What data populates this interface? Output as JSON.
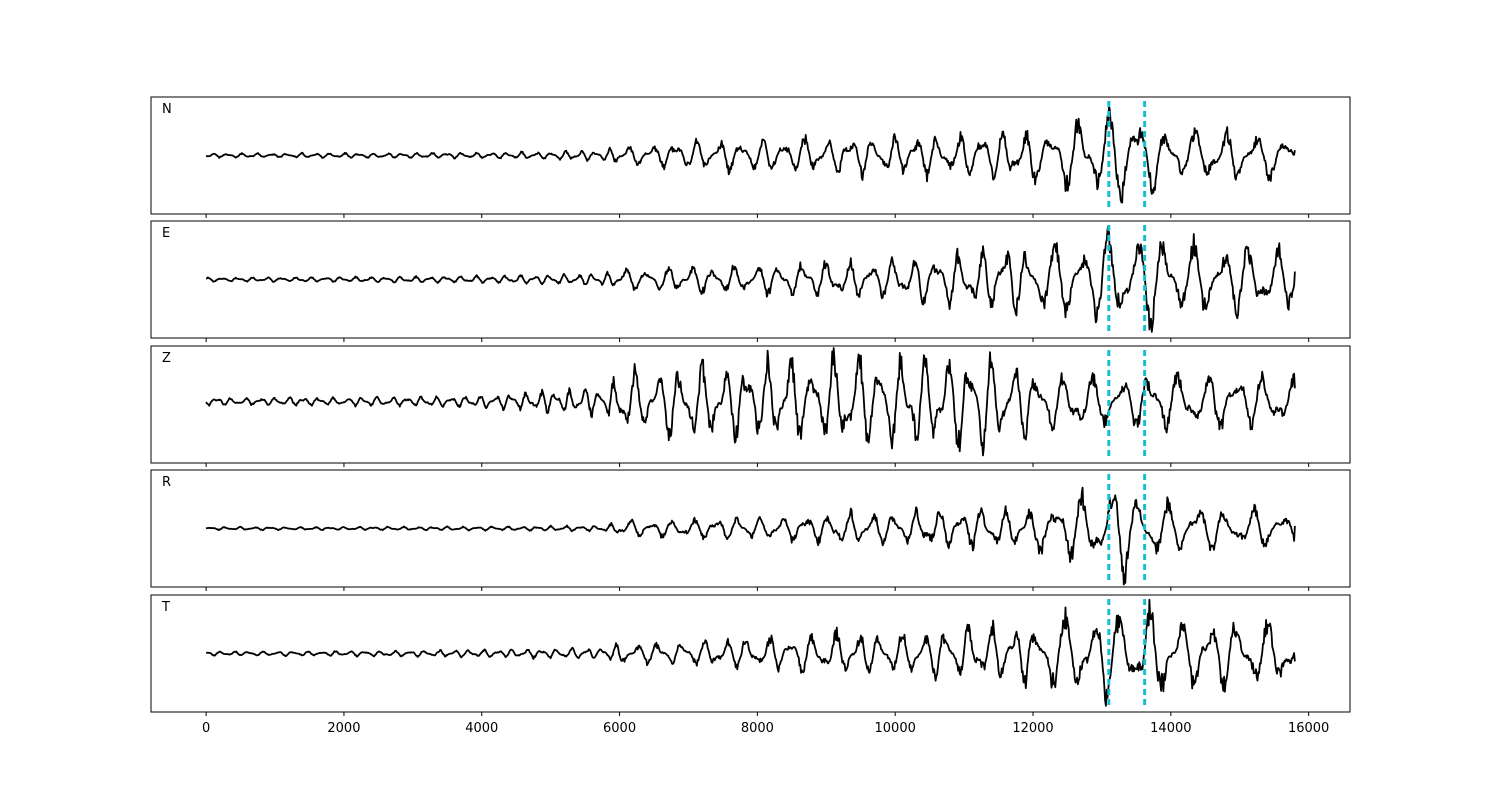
{
  "chart_data": {
    "type": "line",
    "layout": "5 vertically stacked panels sharing one x-axis",
    "xlim": [
      -800,
      16600
    ],
    "grid": false,
    "legend": "none",
    "x_ticks": [
      0,
      2000,
      4000,
      6000,
      8000,
      10000,
      12000,
      14000,
      16000
    ],
    "x_tick_labels": [
      "0",
      "2000",
      "4000",
      "6000",
      "8000",
      "10000",
      "12000",
      "14000",
      "16000"
    ],
    "y_axis": "hidden (no tick labels)",
    "sample_range": [
      0,
      15800
    ],
    "vertical_markers": {
      "x": [
        13100,
        13620
      ],
      "color": "#17becf",
      "style": "dashed"
    },
    "line_color": "#000000",
    "panels": [
      {
        "label": "N",
        "amplitude_envelope": [
          [
            0,
            0.04
          ],
          [
            2000,
            0.05
          ],
          [
            4000,
            0.06
          ],
          [
            5800,
            0.1
          ],
          [
            6000,
            0.2
          ],
          [
            8000,
            0.35
          ],
          [
            10000,
            0.4
          ],
          [
            12000,
            0.5
          ],
          [
            13100,
            0.85
          ],
          [
            13300,
            1.0
          ],
          [
            14000,
            0.55
          ],
          [
            15800,
            0.45
          ]
        ],
        "end_value": 0.1
      },
      {
        "label": "E",
        "amplitude_envelope": [
          [
            0,
            0.04
          ],
          [
            2000,
            0.05
          ],
          [
            4000,
            0.07
          ],
          [
            5800,
            0.12
          ],
          [
            6000,
            0.2
          ],
          [
            8000,
            0.3
          ],
          [
            10000,
            0.4
          ],
          [
            12000,
            0.7
          ],
          [
            13100,
            0.9
          ],
          [
            13300,
            1.0
          ],
          [
            14000,
            0.8
          ],
          [
            15800,
            0.6
          ]
        ],
        "end_value": 0.15
      },
      {
        "label": "Z",
        "amplitude_envelope": [
          [
            0,
            0.08
          ],
          [
            2000,
            0.08
          ],
          [
            4000,
            0.12
          ],
          [
            5800,
            0.3
          ],
          [
            6000,
            0.6
          ],
          [
            8000,
            0.8
          ],
          [
            9000,
            0.9
          ],
          [
            11300,
            1.0
          ],
          [
            12000,
            0.65
          ],
          [
            13100,
            0.5
          ],
          [
            14000,
            0.6
          ],
          [
            15800,
            0.5
          ]
        ],
        "end_value": 0.25
      },
      {
        "label": "R",
        "amplitude_envelope": [
          [
            0,
            0.03
          ],
          [
            2000,
            0.03
          ],
          [
            4000,
            0.04
          ],
          [
            5800,
            0.06
          ],
          [
            6000,
            0.15
          ],
          [
            8000,
            0.25
          ],
          [
            10000,
            0.35
          ],
          [
            12000,
            0.45
          ],
          [
            13100,
            0.85
          ],
          [
            13200,
            1.0
          ],
          [
            14000,
            0.5
          ],
          [
            15800,
            0.35
          ]
        ],
        "end_value": 0.05
      },
      {
        "label": "T",
        "amplitude_envelope": [
          [
            0,
            0.04
          ],
          [
            2000,
            0.05
          ],
          [
            4000,
            0.07
          ],
          [
            5800,
            0.12
          ],
          [
            6000,
            0.2
          ],
          [
            8000,
            0.3
          ],
          [
            9000,
            0.45
          ],
          [
            10000,
            0.4
          ],
          [
            12000,
            0.65
          ],
          [
            13100,
            0.9
          ],
          [
            13200,
            1.0
          ],
          [
            14000,
            0.8
          ],
          [
            15800,
            0.6
          ]
        ],
        "end_value": -0.15
      }
    ]
  }
}
